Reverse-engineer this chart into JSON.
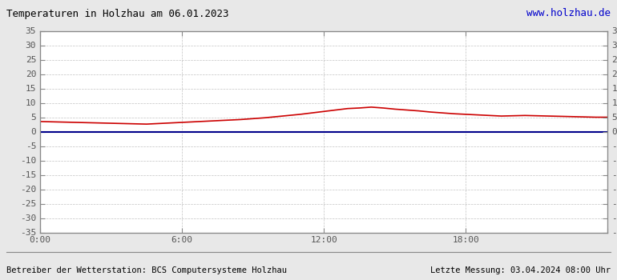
{
  "title": "Temperaturen in Holzhau am 06.01.2023",
  "url_text": "www.holzhau.de",
  "footer_left": "Betreiber der Wetterstation: BCS Computersysteme Holzhau",
  "footer_right": "Letzte Messung: 03.04.2024 08:00 Uhr",
  "bg_color": "#e8e8e8",
  "plot_bg_color": "#ffffff",
  "title_color": "#000000",
  "url_color": "#0000cc",
  "footer_color": "#000000",
  "grid_color": "#aaaaaa",
  "zero_line_color": "#00008b",
  "temp_line_color": "#cc0000",
  "ylim": [
    -35,
    35
  ],
  "yticks": [
    -35,
    -30,
    -25,
    -20,
    -15,
    -10,
    -5,
    0,
    5,
    10,
    15,
    20,
    25,
    30,
    35
  ],
  "xlim": [
    0,
    1440
  ],
  "xticks": [
    0,
    360,
    720,
    1080,
    1440
  ],
  "xtick_labels": [
    "0:00",
    "6:00",
    "12:00",
    "18:00",
    ""
  ],
  "temp_data_minutes": [
    0,
    30,
    60,
    90,
    120,
    150,
    180,
    210,
    240,
    270,
    300,
    330,
    360,
    390,
    420,
    450,
    480,
    510,
    540,
    570,
    600,
    630,
    660,
    690,
    720,
    750,
    780,
    810,
    840,
    870,
    900,
    930,
    960,
    990,
    1020,
    1050,
    1080,
    1110,
    1140,
    1170,
    1200,
    1230,
    1260,
    1290,
    1320,
    1350,
    1380,
    1410,
    1440
  ],
  "temp_data_values": [
    3.5,
    3.4,
    3.3,
    3.2,
    3.1,
    3.0,
    2.9,
    2.8,
    2.7,
    2.6,
    2.8,
    3.0,
    3.2,
    3.4,
    3.6,
    3.8,
    4.0,
    4.2,
    4.5,
    4.8,
    5.2,
    5.6,
    6.0,
    6.5,
    7.0,
    7.5,
    8.0,
    8.2,
    8.5,
    8.2,
    7.8,
    7.5,
    7.2,
    6.8,
    6.5,
    6.2,
    6.0,
    5.8,
    5.6,
    5.4,
    5.5,
    5.6,
    5.5,
    5.4,
    5.3,
    5.2,
    5.1,
    5.0,
    5.0
  ]
}
